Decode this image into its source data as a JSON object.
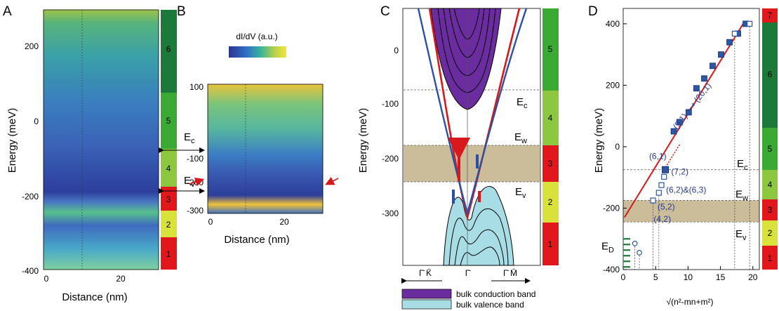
{
  "panel_a": {
    "letter": "A",
    "ylabel": "Energy (meV)",
    "xlabel": "Distance (nm)",
    "yticks": [
      "200",
      "0",
      "-200",
      "-400"
    ],
    "xticks": [
      "0",
      "20"
    ],
    "ec_label": "E",
    "ec_sub": "c",
    "ev_label": "E",
    "ev_sub": "v"
  },
  "panel_b": {
    "letter": "B",
    "colorbar_label": "dI/dV (a.u.)",
    "yticks": [
      "100",
      "-100",
      "-200",
      "-300"
    ],
    "xticks": [
      "0",
      "20"
    ],
    "xlabel": "Distance (nm)"
  },
  "panel_c": {
    "letter": "C",
    "ylabel": "Energy (meV)",
    "yticks": [
      "0",
      "-100",
      "-200",
      "-300"
    ],
    "ec_label": "E",
    "ec_sub": "c",
    "ew_label": "E",
    "ew_sub": "w",
    "ev_label": "E",
    "ev_sub": "v",
    "k_left": "Γ̄ K̄",
    "k_center": "Γ̄",
    "k_right": "Γ̄ M̄",
    "legend_conduction": "bulk conduction band",
    "legend_valence": "bulk valence band",
    "color_conduction": "#6a2c9e",
    "color_valence": "#a9dde6"
  },
  "panel_d": {
    "letter": "D",
    "ylabel": "Energy (meV)",
    "xlabel_prefix": "√(n²-mn+m²)",
    "yticks": [
      "400",
      "200",
      "0",
      "-200",
      "-400"
    ],
    "xticks": [
      "0",
      "5",
      "10",
      "15",
      "20"
    ],
    "ec_label": "E",
    "ec_sub": "c",
    "ew_label": "E",
    "ew_sub": "w",
    "ev_label": "E",
    "ev_sub": "v",
    "ed_label": "E",
    "ed_sub": "D",
    "ann_61": "(6,1)",
    "ann_91_201": "(9,1) ⟶ (20,1)",
    "ann_72": "(7,2)",
    "ann_62_63": "(6,2)&(6,3)",
    "ann_52": "(5,2)",
    "ann_42": "(4,2)"
  },
  "strip_ac": [
    "1",
    "2",
    "3",
    "4",
    "5",
    "6"
  ],
  "strip_c": [
    "1",
    "2",
    "3",
    "4",
    "5"
  ],
  "strip_d": [
    "1",
    "2",
    "3",
    "4",
    "5",
    "6",
    "7"
  ],
  "colors": {
    "red": "#e2171c",
    "yellow": "#d8e23a",
    "lightgreen": "#8dc63f",
    "green": "#3aaa35",
    "darkgreen": "#1b7a3a",
    "tan": "#cbbd99",
    "line_red": "#d7191c",
    "line_blue": "#2b4fa8",
    "square_blue": "#2b57a6"
  },
  "chart_data": {
    "type": "scatter",
    "xlabel": "√(n²-mn+m²)",
    "ylabel": "Energy (meV)",
    "xlim": [
      0,
      21
    ],
    "ylim": [
      -400,
      450
    ],
    "band_edges_meV": {
      "Ec": -75,
      "Ew": -175,
      "Ev": -245
    },
    "filled_squares": [
      [
        7.8,
        50
      ],
      [
        8.7,
        80
      ],
      [
        10.1,
        112
      ],
      [
        11.3,
        190
      ],
      [
        12.5,
        222
      ],
      [
        13.8,
        263
      ],
      [
        15.1,
        300
      ],
      [
        16.4,
        340
      ],
      [
        17.7,
        368
      ],
      [
        18.9,
        400
      ]
    ],
    "open_squares": [
      [
        6.3,
        -98
      ],
      [
        5.9,
        -125
      ],
      [
        5.5,
        -150
      ],
      [
        4.6,
        -175
      ],
      [
        17.2,
        368
      ],
      [
        19.5,
        400
      ]
    ],
    "open_circles": [
      [
        1.8,
        -315
      ],
      [
        2.5,
        -345
      ]
    ],
    "fit_line": [
      [
        0.2,
        -230
      ],
      [
        18.5,
        400
      ]
    ]
  }
}
